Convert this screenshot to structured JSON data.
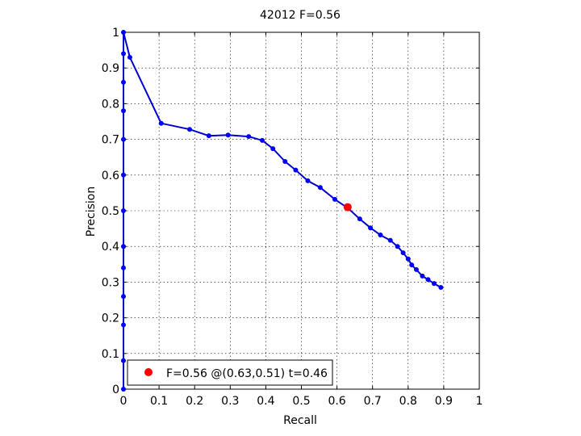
{
  "chart_data": {
    "type": "line",
    "title": "42012 F=0.56",
    "xlabel": "Recall",
    "ylabel": "Precision",
    "xlim": [
      0,
      1
    ],
    "ylim": [
      0,
      1
    ],
    "xticks": [
      0,
      0.1,
      0.2,
      0.3,
      0.4,
      0.5,
      0.6,
      0.7,
      0.8,
      0.9,
      1
    ],
    "yticks": [
      0,
      0.1,
      0.2,
      0.3,
      0.4,
      0.5,
      0.6,
      0.7,
      0.8,
      0.9,
      1
    ],
    "xtick_labels": [
      "0",
      "0.1",
      "0.2",
      "0.3",
      "0.4",
      "0.5",
      "0.6",
      "0.7",
      "0.8",
      "0.9",
      "1"
    ],
    "ytick_labels": [
      "0",
      "0.1",
      "0.2",
      "0.3",
      "0.4",
      "0.5",
      "0.6",
      "0.7",
      "0.8",
      "0.9",
      "1"
    ],
    "grid": true,
    "legend_position": "bottom-left",
    "series": [
      {
        "color": "#0000cc",
        "marker_color": "#0000ff",
        "x": [
          0.0,
          0.0,
          0.0,
          0.0,
          0.0,
          0.0,
          0.0,
          0.0,
          0.0,
          0.0,
          0.0,
          0.0,
          0.0,
          0.018,
          0.106,
          0.186,
          0.24,
          0.294,
          0.352,
          0.39,
          0.42,
          0.454,
          0.484,
          0.518,
          0.553,
          0.594,
          0.631,
          0.664,
          0.694,
          0.722,
          0.75,
          0.77,
          0.786,
          0.8,
          0.81,
          0.823,
          0.84,
          0.856,
          0.873,
          0.892
        ],
        "y": [
          0.0,
          0.08,
          0.18,
          0.26,
          0.34,
          0.4,
          0.5,
          0.6,
          0.7,
          0.78,
          0.86,
          0.94,
          1.0,
          0.93,
          0.745,
          0.728,
          0.71,
          0.712,
          0.708,
          0.697,
          0.674,
          0.638,
          0.614,
          0.584,
          0.565,
          0.532,
          0.507,
          0.477,
          0.452,
          0.432,
          0.417,
          0.4,
          0.382,
          0.365,
          0.348,
          0.335,
          0.317,
          0.307,
          0.296,
          0.285
        ]
      }
    ],
    "highlight": {
      "x": 0.63,
      "y": 0.51,
      "color": "#ff0000",
      "label": "F=0.56 @(0.63,0.51) t=0.46"
    }
  }
}
